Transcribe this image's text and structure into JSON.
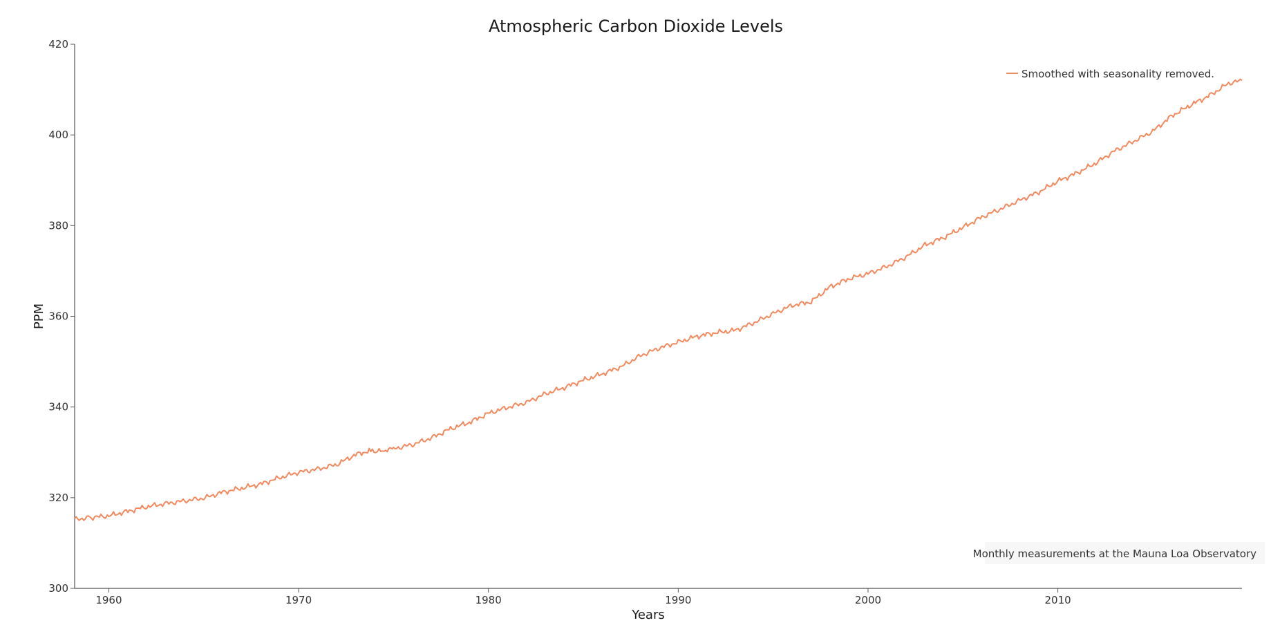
{
  "chart_data": {
    "type": "line",
    "title": "Atmospheric Carbon Dioxide Levels",
    "xlabel": "Years",
    "ylabel": "PPM",
    "xlim": [
      1958.2,
      2019.7
    ],
    "ylim": [
      300,
      420
    ],
    "x_ticks": [
      1960,
      1970,
      1980,
      1990,
      2000,
      2010
    ],
    "y_ticks": [
      300,
      320,
      340,
      360,
      380,
      400,
      420
    ],
    "grid": false,
    "legend_position": "top-right",
    "annotation": "Monthly measurements at the Mauna Loa Observatory",
    "series": [
      {
        "name": "Smoothed with seasonality removed.",
        "color": "#f28a5f",
        "x": [
          1958.2,
          1959,
          1960,
          1961,
          1962,
          1963,
          1964,
          1965,
          1966,
          1967,
          1968,
          1969,
          1970,
          1971,
          1972,
          1973,
          1973.8,
          1974.5,
          1975,
          1976,
          1977,
          1978,
          1979,
          1980,
          1981,
          1982,
          1983,
          1984,
          1985,
          1986,
          1987,
          1988,
          1989,
          1990,
          1991,
          1992,
          1993,
          1994,
          1995,
          1996,
          1997,
          1998,
          1999,
          2000,
          2001,
          2002,
          2003,
          2004,
          2005,
          2006,
          2007,
          2008,
          2009,
          2010,
          2011,
          2012,
          2013,
          2014,
          2015,
          2016,
          2017,
          2018,
          2019,
          2019.7
        ],
        "y": [
          315.2,
          315.6,
          316.0,
          317.0,
          318.0,
          318.7,
          319.3,
          319.9,
          321.2,
          322.1,
          323.0,
          324.4,
          325.6,
          326.3,
          327.3,
          329.5,
          330.4,
          330.2,
          330.8,
          331.7,
          333.2,
          335.2,
          336.6,
          338.6,
          339.9,
          341.0,
          342.9,
          344.3,
          345.9,
          347.3,
          348.9,
          351.3,
          353.0,
          354.3,
          355.6,
          356.4,
          356.9,
          358.6,
          360.6,
          362.4,
          363.2,
          366.5,
          368.3,
          369.4,
          371.0,
          373.1,
          375.7,
          377.4,
          379.6,
          381.9,
          383.7,
          385.6,
          387.4,
          389.8,
          391.6,
          393.8,
          396.5,
          398.6,
          400.8,
          404.2,
          406.6,
          408.7,
          411.4,
          412.0
        ]
      }
    ]
  }
}
